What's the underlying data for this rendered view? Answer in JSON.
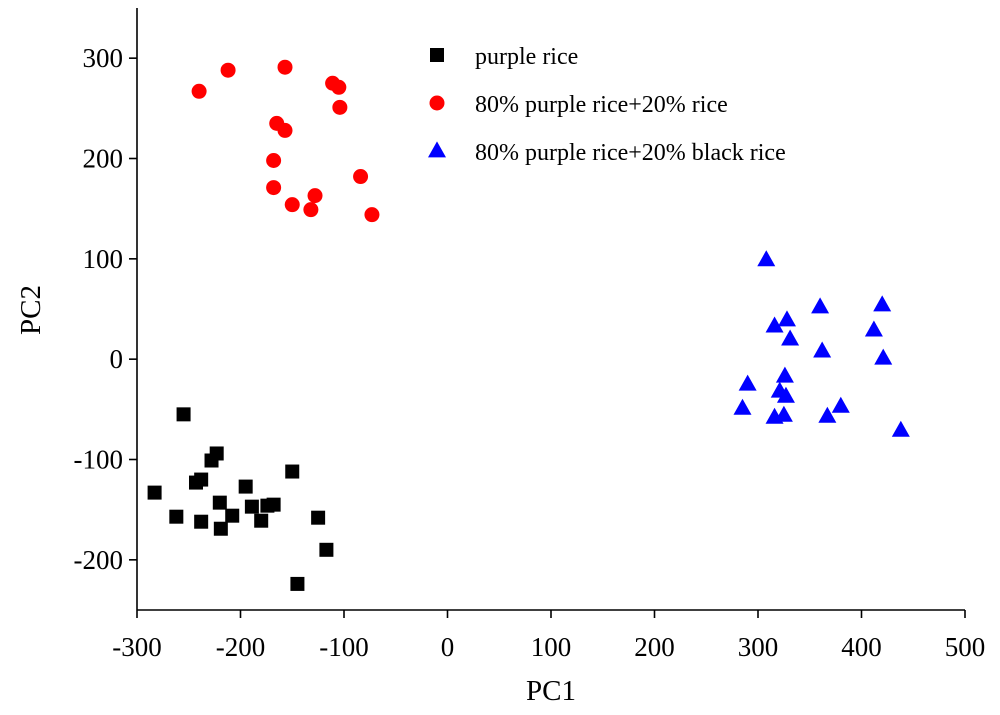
{
  "chart_data": {
    "type": "scatter",
    "xlabel": "PC1",
    "ylabel": "PC2",
    "xlim": [
      -300,
      500
    ],
    "ylim": [
      -250,
      350
    ],
    "xticks": [
      -300,
      -200,
      -100,
      0,
      100,
      200,
      300,
      400,
      500
    ],
    "yticks": [
      -200,
      -100,
      0,
      100,
      200,
      300
    ],
    "grid": false,
    "legend_position": "top-center",
    "series": [
      {
        "name": "purple rice",
        "marker": "square",
        "color": "#000000",
        "points": [
          [
            -255,
            -55
          ],
          [
            -283,
            -133
          ],
          [
            -262,
            -157
          ],
          [
            -243,
            -123
          ],
          [
            -238,
            -120
          ],
          [
            -238,
            -162
          ],
          [
            -228,
            -101
          ],
          [
            -223,
            -94
          ],
          [
            -220,
            -143
          ],
          [
            -219,
            -169
          ],
          [
            -208,
            -156
          ],
          [
            -195,
            -127
          ],
          [
            -189,
            -147
          ],
          [
            -180,
            -161
          ],
          [
            -174,
            -146
          ],
          [
            -168,
            -145
          ],
          [
            -150,
            -112
          ],
          [
            -125,
            -158
          ],
          [
            -117,
            -190
          ],
          [
            -145,
            -224
          ]
        ]
      },
      {
        "name": "80% purple rice+20% rice",
        "marker": "circle",
        "color": "#ff0000",
        "points": [
          [
            -240,
            267
          ],
          [
            -212,
            288
          ],
          [
            -157,
            291
          ],
          [
            -111,
            275
          ],
          [
            -105,
            271
          ],
          [
            -104,
            251
          ],
          [
            -165,
            235
          ],
          [
            -157,
            228
          ],
          [
            -168,
            198
          ],
          [
            -84,
            182
          ],
          [
            -128,
            163
          ],
          [
            -168,
            171
          ],
          [
            -150,
            154
          ],
          [
            -132,
            149
          ],
          [
            -73,
            144
          ]
        ]
      },
      {
        "name": "80% purple rice+20% black rice",
        "marker": "triangle",
        "color": "#0000ff",
        "points": [
          [
            308,
            99
          ],
          [
            420,
            54
          ],
          [
            360,
            52
          ],
          [
            328,
            39
          ],
          [
            316,
            33
          ],
          [
            412,
            29
          ],
          [
            331,
            20
          ],
          [
            362,
            8
          ],
          [
            421,
            1
          ],
          [
            290,
            -25
          ],
          [
            326,
            -17
          ],
          [
            321,
            -32
          ],
          [
            327,
            -37
          ],
          [
            285,
            -49
          ],
          [
            380,
            -47
          ],
          [
            367,
            -57
          ],
          [
            325,
            -56
          ],
          [
            316,
            -58
          ],
          [
            438,
            -71
          ]
        ]
      }
    ]
  }
}
